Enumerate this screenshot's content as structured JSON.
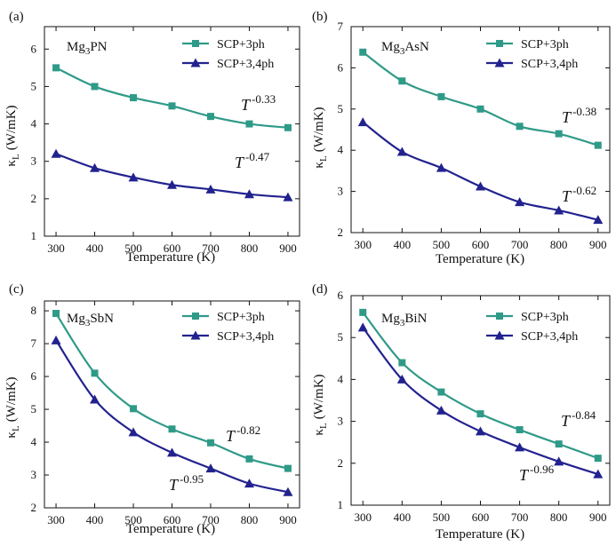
{
  "figure": {
    "x_axis_label": "Temperature (K)",
    "y_axis_label_symbol": "κ",
    "y_axis_label_subscript": "L",
    "y_axis_label_unit": "(W/mK)"
  },
  "legend": {
    "series_3ph": "SCP+3ph",
    "series_34ph": "SCP+3,4ph"
  },
  "colors": {
    "series_3ph": "#2f9a88",
    "series_34ph": "#22228f",
    "annotation_3ph": "#2f9a88",
    "annotation_34ph": "#22228f"
  },
  "panels": [
    {
      "tag": "(a)",
      "compound_main": "Mg",
      "compound_sub": "3",
      "compound_tail": "PN",
      "annotation_3ph": {
        "base": "T",
        "exponent": "-0.33"
      },
      "annotation_34ph": {
        "base": "T",
        "exponent": "-0.47"
      }
    },
    {
      "tag": "(b)",
      "compound_main": "Mg",
      "compound_sub": "3",
      "compound_tail": "AsN",
      "annotation_3ph": {
        "base": "T",
        "exponent": "-0.38"
      },
      "annotation_34ph": {
        "base": "T",
        "exponent": "-0.62"
      }
    },
    {
      "tag": "(c)",
      "compound_main": "Mg",
      "compound_sub": "3",
      "compound_tail": "SbN",
      "annotation_3ph": {
        "base": "T",
        "exponent": "-0.82"
      },
      "annotation_34ph": {
        "base": "T",
        "exponent": "-0.95"
      }
    },
    {
      "tag": "(d)",
      "compound_main": "Mg",
      "compound_sub": "3",
      "compound_tail": "BiN",
      "annotation_3ph": {
        "base": "T",
        "exponent": "-0.84"
      },
      "annotation_34ph": {
        "base": "T",
        "exponent": "-0.96"
      }
    }
  ],
  "chart_data": [
    {
      "type": "line",
      "x": [
        300,
        400,
        500,
        600,
        700,
        800,
        900
      ],
      "xlabel": "Temperature (K)",
      "ylabel": "κL (W/mK)",
      "xlim": [
        270,
        930
      ],
      "ylim": [
        1,
        6.6
      ],
      "xticks": [
        300,
        400,
        500,
        600,
        700,
        800,
        900
      ],
      "yticks": [
        1,
        2,
        3,
        4,
        5,
        6
      ],
      "legend_position": "top-right",
      "series": [
        {
          "name": "SCP+3ph",
          "values": [
            5.5,
            5.0,
            4.7,
            4.48,
            4.2,
            4.0,
            3.9
          ]
        },
        {
          "name": "SCP+3,4ph",
          "values": [
            3.2,
            2.82,
            2.57,
            2.37,
            2.25,
            2.12,
            2.04
          ]
        }
      ]
    },
    {
      "type": "line",
      "x": [
        300,
        400,
        500,
        600,
        700,
        800,
        900
      ],
      "xlabel": "Temperature (K)",
      "ylabel": "κL (W/mK)",
      "xlim": [
        270,
        930
      ],
      "ylim": [
        2,
        7
      ],
      "xticks": [
        300,
        400,
        500,
        600,
        700,
        800,
        900
      ],
      "yticks": [
        2,
        3,
        4,
        5,
        6,
        7
      ],
      "legend_position": "top-right",
      "series": [
        {
          "name": "SCP+3ph",
          "values": [
            6.38,
            5.68,
            5.3,
            5.0,
            4.58,
            4.4,
            4.12
          ]
        },
        {
          "name": "SCP+3,4ph",
          "values": [
            4.68,
            3.96,
            3.57,
            3.12,
            2.74,
            2.54,
            2.31
          ]
        }
      ]
    },
    {
      "type": "line",
      "x": [
        300,
        400,
        500,
        600,
        700,
        800,
        900
      ],
      "xlabel": "Temperature (K)",
      "ylabel": "κL (W/mK)",
      "xlim": [
        270,
        930
      ],
      "ylim": [
        2,
        8.3
      ],
      "xticks": [
        300,
        400,
        500,
        600,
        700,
        800,
        900
      ],
      "yticks": [
        2,
        3,
        4,
        5,
        6,
        7,
        8
      ],
      "legend_position": "top-right",
      "series": [
        {
          "name": "SCP+3ph",
          "values": [
            7.92,
            6.1,
            5.02,
            4.4,
            3.98,
            3.49,
            3.2
          ]
        },
        {
          "name": "SCP+3,4ph",
          "values": [
            7.1,
            5.3,
            4.3,
            3.68,
            3.2,
            2.74,
            2.48
          ]
        }
      ]
    },
    {
      "type": "line",
      "x": [
        300,
        400,
        500,
        600,
        700,
        800,
        900
      ],
      "xlabel": "Temperature (K)",
      "ylabel": "κL (W/mK)",
      "xlim": [
        270,
        930
      ],
      "ylim": [
        1,
        6
      ],
      "xticks": [
        300,
        400,
        500,
        600,
        700,
        800,
        900
      ],
      "yticks": [
        1,
        2,
        3,
        4,
        5,
        6
      ],
      "legend_position": "top-right",
      "series": [
        {
          "name": "SCP+3ph",
          "values": [
            5.6,
            4.4,
            3.7,
            3.18,
            2.8,
            2.46,
            2.12
          ]
        },
        {
          "name": "SCP+3,4ph",
          "values": [
            5.24,
            4.0,
            3.26,
            2.76,
            2.38,
            2.04,
            1.74
          ]
        }
      ]
    }
  ]
}
